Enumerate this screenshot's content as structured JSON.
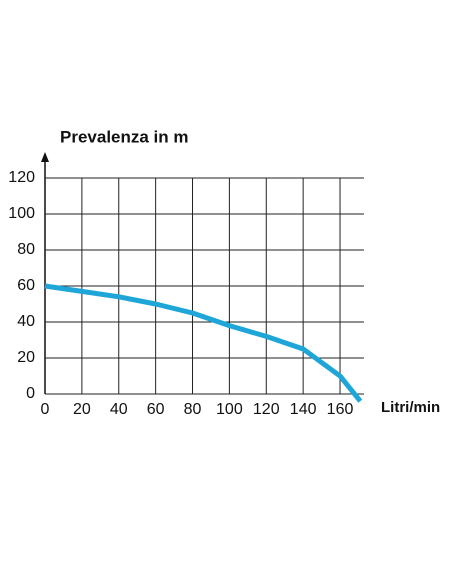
{
  "chart_data": {
    "type": "line",
    "y_label": "Prevalenza in m",
    "x_label": "Litri/min",
    "x": [
      0,
      20,
      40,
      60,
      80,
      100,
      120,
      140,
      160,
      171
    ],
    "series": [
      {
        "color": "#1ea6d8",
        "values": [
          60,
          57,
          54,
          50,
          45,
          38,
          32,
          25,
          10,
          -4
        ]
      }
    ],
    "xlim": [
      0,
      173
    ],
    "xticks": [
      0,
      20,
      40,
      60,
      80,
      100,
      120,
      140,
      160
    ],
    "ylim": [
      0,
      120
    ],
    "yticks": [
      0,
      20,
      40,
      60,
      80,
      100,
      120
    ],
    "grid": true
  }
}
